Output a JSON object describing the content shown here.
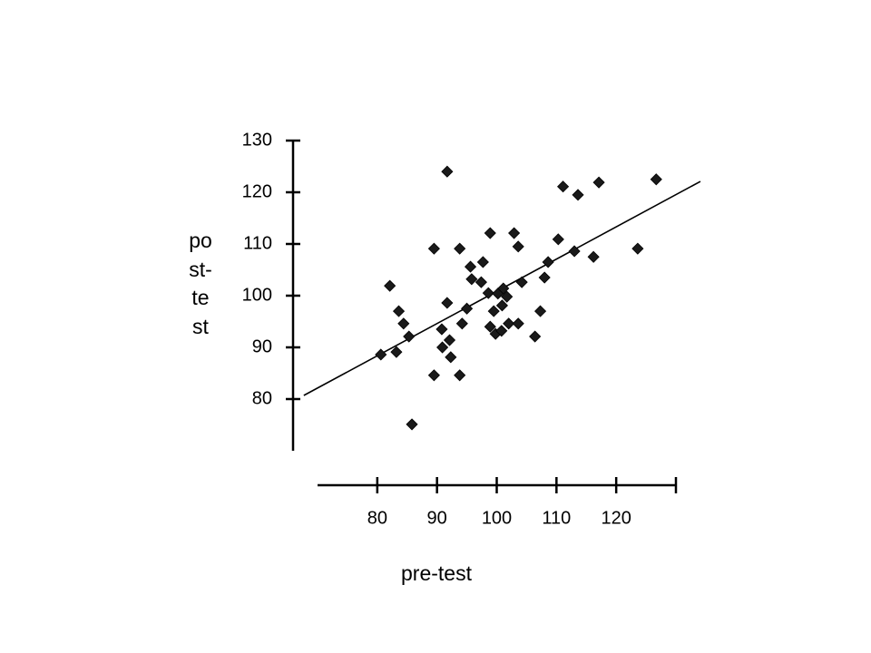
{
  "chart_data": {
    "type": "scatter",
    "x_label": "pre-test",
    "y_label": "post-test",
    "xlim": [
      70,
      130
    ],
    "ylim": [
      70,
      130
    ],
    "xticks": [
      80,
      90,
      100,
      110,
      120
    ],
    "yticks": [
      80,
      90,
      100,
      110,
      120,
      130
    ],
    "color": "#1a1a1a",
    "series": [
      {
        "x": [
          80.6,
          82.1,
          83.2,
          83.6,
          84.4,
          85.3,
          85.8,
          89.5,
          89.5,
          90.8,
          90.9,
          91.7,
          91.7,
          92.1,
          92.3,
          93.8,
          93.8,
          94.2,
          95.0,
          95.6,
          95.8,
          97.4,
          97.7,
          98.6,
          98.9,
          98.9,
          99.5,
          99.8,
          100.2,
          100.8,
          100.9,
          101.1,
          101.7,
          102.0,
          102.9,
          103.6,
          103.6,
          104.2,
          106.4,
          107.3,
          108.0,
          108.6,
          110.3,
          111.1,
          113.0,
          113.6,
          116.2,
          117.1,
          123.6,
          126.7
        ],
        "values": [
          88.6,
          101.9,
          89.1,
          97.0,
          94.6,
          92.1,
          75.1,
          84.6,
          109.1,
          93.5,
          90.0,
          124.0,
          98.6,
          91.4,
          88.1,
          109.1,
          84.6,
          94.6,
          97.5,
          105.6,
          103.2,
          102.6,
          106.5,
          100.5,
          112.1,
          94.0,
          97.0,
          92.6,
          100.4,
          93.2,
          98.1,
          101.4,
          99.8,
          94.6,
          112.1,
          109.5,
          94.6,
          102.6,
          92.1,
          97.0,
          103.5,
          106.5,
          110.9,
          121.1,
          108.6,
          119.5,
          107.5,
          121.9,
          109.1,
          122.5
        ]
      }
    ],
    "fit_line": {
      "x": [
        67.7,
        134.1
      ],
      "y": [
        80.7,
        122.1
      ]
    }
  }
}
